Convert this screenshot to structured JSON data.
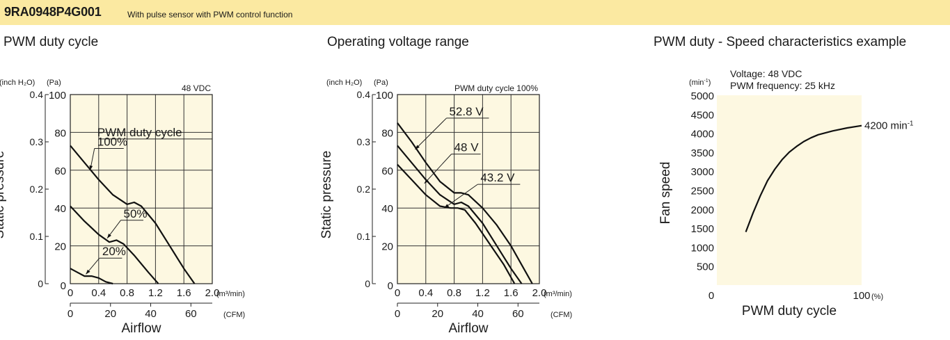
{
  "header": {
    "model": "9RA0948P4G001",
    "description": "With pulse sensor with PWM control function",
    "color": "#fbe9a1"
  },
  "plot_bg_color": "#fdf8e1",
  "chart_data": [
    {
      "id": "pwm-duty-cycle",
      "type": "line",
      "title": "PWM duty cycle",
      "note": "48 VDC",
      "xlabel": "Airflow",
      "ylabel": "Static pressure",
      "x_unit": "(m³/min)",
      "x2_unit": "(CFM)",
      "y_unit_pa": "(Pa)",
      "y_unit_inch": "(inch H₂O)",
      "xlim": [
        0,
        2.0
      ],
      "ylim": [
        0,
        100
      ],
      "x_ticks": [
        "0.4",
        "0.8",
        "1.2",
        "1.6",
        "2.0"
      ],
      "x_tick_values": [
        0.4,
        0.8,
        1.2,
        1.6,
        2.0
      ],
      "x_zero": "0",
      "x2_ticks": [
        "0",
        "20",
        "40",
        "60"
      ],
      "x2_tick_values": [
        0,
        20,
        40,
        60
      ],
      "y_ticks": [
        "20",
        "40",
        "60",
        "80",
        "100"
      ],
      "y_tick_values": [
        20,
        40,
        60,
        80,
        100
      ],
      "y_zero": "0",
      "y2_ticks": [
        "0",
        "0.1",
        "0.2",
        "0.3",
        "0.4"
      ],
      "y2_tick_values": [
        0,
        0.1,
        0.2,
        0.3,
        0.4
      ],
      "legend_title": "PWM duty cycle",
      "series": [
        {
          "name": "100%",
          "x": [
            0,
            0.2,
            0.4,
            0.6,
            0.8,
            0.9,
            1.0,
            1.2,
            1.4,
            1.6,
            1.75
          ],
          "y": [
            73,
            64,
            55,
            47,
            42,
            43,
            41,
            32,
            20,
            8,
            0
          ],
          "label_x": 0.38,
          "label_y": 73,
          "arrow_x": 0.28,
          "arrow_y": 60
        },
        {
          "name": "50%",
          "x": [
            0,
            0.2,
            0.4,
            0.55,
            0.65,
            0.75,
            0.9,
            1.1,
            1.24
          ],
          "y": [
            41,
            33,
            26,
            22,
            23,
            21,
            15,
            6,
            0
          ],
          "label_x": 0.75,
          "label_y": 35,
          "arrow_x": 0.52,
          "arrow_y": 24
        },
        {
          "name": "20%",
          "x": [
            0,
            0.1,
            0.2,
            0.3,
            0.4,
            0.5,
            0.6
          ],
          "y": [
            8,
            6,
            4,
            4,
            3,
            1,
            0
          ],
          "label_x": 0.45,
          "label_y": 15,
          "arrow_x": 0.22,
          "arrow_y": 5
        }
      ]
    },
    {
      "id": "operating-voltage-range",
      "type": "line",
      "title": "Operating voltage range",
      "note": "PWM duty cycle 100%",
      "xlabel": "Airflow",
      "ylabel": "Static pressure",
      "x_unit": "(m³/min)",
      "x2_unit": "(CFM)",
      "y_unit_pa": "(Pa)",
      "y_unit_inch": "(inch H₂O)",
      "xlim": [
        0,
        2.0
      ],
      "ylim": [
        0,
        100
      ],
      "x_ticks": [
        "0.4",
        "0.8",
        "1.2",
        "1.6",
        "2.0"
      ],
      "x_tick_values": [
        0.4,
        0.8,
        1.2,
        1.6,
        2.0
      ],
      "x_zero": "0",
      "x2_ticks": [
        "0",
        "20",
        "40",
        "60"
      ],
      "x2_tick_values": [
        0,
        20,
        40,
        60
      ],
      "y_ticks": [
        "20",
        "40",
        "60",
        "80",
        "100"
      ],
      "y_tick_values": [
        20,
        40,
        60,
        80,
        100
      ],
      "y_zero": "0",
      "y2_ticks": [
        "0",
        "0.1",
        "0.2",
        "0.3",
        "0.4"
      ],
      "y2_tick_values": [
        0,
        0.1,
        0.2,
        0.3,
        0.4
      ],
      "series": [
        {
          "name": "52.8 V",
          "x": [
            0,
            0.2,
            0.4,
            0.6,
            0.8,
            0.9,
            1.0,
            1.2,
            1.4,
            1.6,
            1.75,
            1.9
          ],
          "y": [
            85,
            75,
            64,
            54,
            48,
            48,
            47,
            40,
            31,
            20,
            10,
            0
          ],
          "label_x": 0.73,
          "label_y": 89,
          "arrow_x": 0.25,
          "arrow_y": 71
        },
        {
          "name": "48 V",
          "x": [
            0,
            0.2,
            0.4,
            0.6,
            0.8,
            0.9,
            1.0,
            1.2,
            1.4,
            1.6,
            1.75
          ],
          "y": [
            73,
            64,
            55,
            47,
            42,
            43,
            41,
            32,
            20,
            8,
            0
          ],
          "label_x": 0.8,
          "label_y": 70,
          "arrow_x": 0.38,
          "arrow_y": 53
        },
        {
          "name": "43.2 V",
          "x": [
            0,
            0.2,
            0.4,
            0.6,
            0.75,
            0.85,
            0.95,
            1.1,
            1.3,
            1.5,
            1.65
          ],
          "y": [
            63,
            55,
            47,
            41,
            40,
            40,
            39,
            32,
            21,
            10,
            0
          ],
          "label_x": 1.17,
          "label_y": 54,
          "arrow_x": 0.66,
          "arrow_y": 40
        }
      ]
    },
    {
      "id": "pwm-duty-speed",
      "type": "line",
      "title": "PWM duty - Speed characteristics example",
      "note_lines": [
        "Voltage: 48 VDC",
        "PWM frequency: 25 kHz"
      ],
      "xlabel": "PWM duty cycle",
      "ylabel": "Fan speed",
      "x_unit": "(%)",
      "y_unit": "(min⁻¹)",
      "xlim": [
        0,
        100
      ],
      "ylim": [
        0,
        5000
      ],
      "x_ticks": [
        "0",
        "100"
      ],
      "x_tick_values": [
        0,
        100
      ],
      "y_ticks": [
        "500",
        "1000",
        "1500",
        "2000",
        "2500",
        "3000",
        "3500",
        "4000",
        "4500",
        "5000"
      ],
      "y_tick_values": [
        500,
        1000,
        1500,
        2000,
        2500,
        3000,
        3500,
        4000,
        4500,
        5000
      ],
      "series": [
        {
          "name": "speed",
          "x": [
            20,
            25,
            30,
            35,
            40,
            45,
            50,
            55,
            60,
            65,
            70,
            80,
            90,
            100
          ],
          "y": [
            1400,
            1900,
            2350,
            2750,
            3050,
            3300,
            3500,
            3650,
            3780,
            3880,
            3960,
            4060,
            4140,
            4200
          ]
        }
      ],
      "end_label": "4200 min⁻¹"
    }
  ]
}
